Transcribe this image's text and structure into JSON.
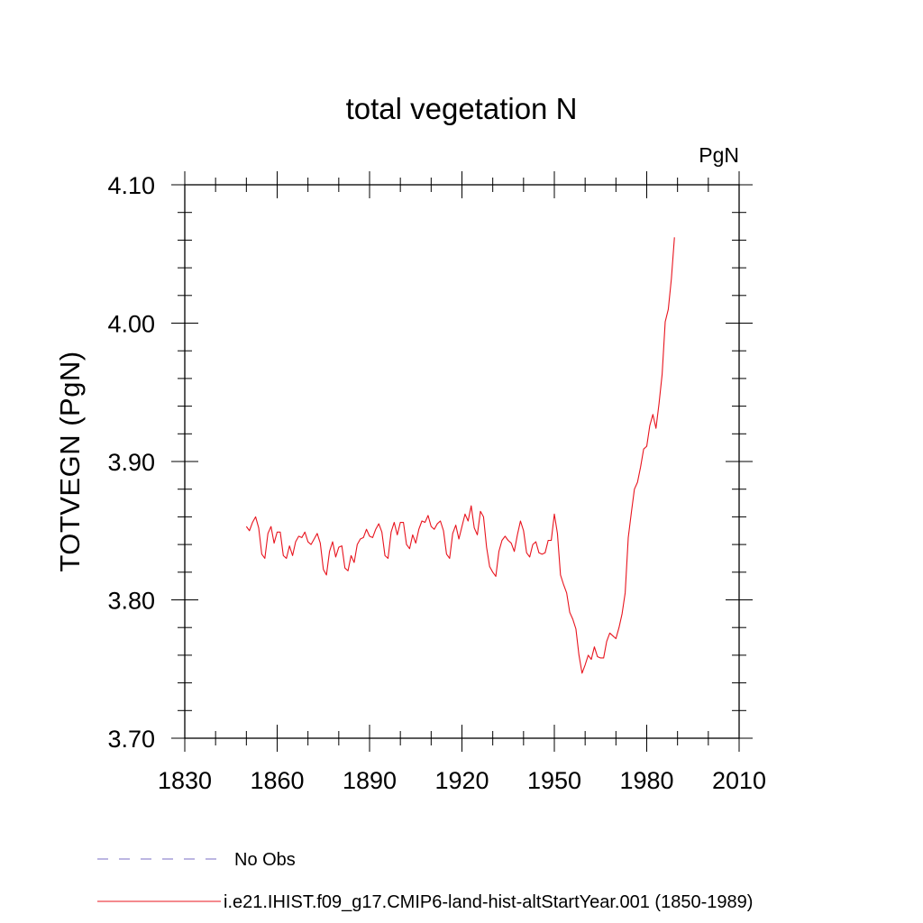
{
  "chart_data": {
    "type": "line",
    "title": "total vegetation N",
    "units_label": "PgN",
    "ylabel": "TOTVEGN  (PgN)",
    "xlabel": "",
    "xlim": [
      1830,
      2010
    ],
    "ylim": [
      3.7,
      4.1
    ],
    "x_ticks": [
      "1830",
      "1860",
      "1890",
      "1920",
      "1950",
      "1980",
      "2010"
    ],
    "y_ticks": [
      "3.70",
      "3.80",
      "3.90",
      "4.00",
      "4.10"
    ],
    "grid": false,
    "legend_position": "bottom",
    "series": [
      {
        "name": "No Obs",
        "color": "#7a6cc4",
        "dash": true,
        "x": [],
        "values": []
      },
      {
        "name": "i.e21.IHIST.f09_g17.CMIP6-land-hist-altStartYear.001 (1850-1989)",
        "color": "#e8141e",
        "dash": false,
        "x": [
          1850,
          1851,
          1852,
          1853,
          1854,
          1855,
          1856,
          1857,
          1858,
          1859,
          1860,
          1861,
          1862,
          1863,
          1864,
          1865,
          1866,
          1867,
          1868,
          1869,
          1870,
          1871,
          1872,
          1873,
          1874,
          1875,
          1876,
          1877,
          1878,
          1879,
          1880,
          1881,
          1882,
          1883,
          1884,
          1885,
          1886,
          1887,
          1888,
          1889,
          1890,
          1891,
          1892,
          1893,
          1894,
          1895,
          1896,
          1897,
          1898,
          1899,
          1900,
          1901,
          1902,
          1903,
          1904,
          1905,
          1906,
          1907,
          1908,
          1909,
          1910,
          1911,
          1912,
          1913,
          1914,
          1915,
          1916,
          1917,
          1918,
          1919,
          1920,
          1921,
          1922,
          1923,
          1924,
          1925,
          1926,
          1927,
          1928,
          1929,
          1930,
          1931,
          1932,
          1933,
          1934,
          1935,
          1936,
          1937,
          1938,
          1939,
          1940,
          1941,
          1942,
          1943,
          1944,
          1945,
          1946,
          1947,
          1948,
          1949,
          1950,
          1951,
          1952,
          1953,
          1954,
          1955,
          1956,
          1957,
          1958,
          1959,
          1960,
          1961,
          1962,
          1963,
          1964,
          1965,
          1966,
          1967,
          1968,
          1969,
          1970,
          1971,
          1972,
          1973,
          1974,
          1975,
          1976,
          1977,
          1978,
          1979,
          1980,
          1981,
          1982,
          1983,
          1984,
          1985,
          1986,
          1987,
          1988,
          1989
        ],
        "values": [
          3.853,
          3.85,
          3.856,
          3.86,
          3.852,
          3.833,
          3.83,
          3.848,
          3.853,
          3.841,
          3.849,
          3.849,
          3.832,
          3.83,
          3.839,
          3.832,
          3.842,
          3.846,
          3.845,
          3.849,
          3.842,
          3.84,
          3.844,
          3.848,
          3.841,
          3.822,
          3.818,
          3.835,
          3.842,
          3.831,
          3.838,
          3.839,
          3.823,
          3.821,
          3.832,
          3.827,
          3.84,
          3.844,
          3.845,
          3.851,
          3.846,
          3.845,
          3.851,
          3.855,
          3.849,
          3.832,
          3.83,
          3.849,
          3.856,
          3.847,
          3.856,
          3.856,
          3.84,
          3.837,
          3.847,
          3.841,
          3.851,
          3.857,
          3.856,
          3.861,
          3.853,
          3.851,
          3.855,
          3.857,
          3.85,
          3.833,
          3.83,
          3.848,
          3.854,
          3.844,
          3.853,
          3.862,
          3.857,
          3.868,
          3.852,
          3.847,
          3.864,
          3.86,
          3.838,
          3.824,
          3.82,
          3.817,
          3.835,
          3.843,
          3.846,
          3.843,
          3.841,
          3.835,
          3.847,
          3.857,
          3.85,
          3.834,
          3.831,
          3.84,
          3.842,
          3.834,
          3.833,
          3.834,
          3.843,
          3.843,
          3.862,
          3.848,
          3.818,
          3.811,
          3.805,
          3.791,
          3.786,
          3.779,
          3.76,
          3.747,
          3.753,
          3.76,
          3.757,
          3.766,
          3.759,
          3.758,
          3.758,
          3.77,
          3.776,
          3.774,
          3.772,
          3.78,
          3.79,
          3.805,
          3.845,
          3.863,
          3.88,
          3.885,
          3.896,
          3.909,
          3.911,
          3.926,
          3.934,
          3.924,
          3.942,
          3.963,
          4.001,
          4.01,
          4.032,
          4.062
        ]
      }
    ]
  }
}
